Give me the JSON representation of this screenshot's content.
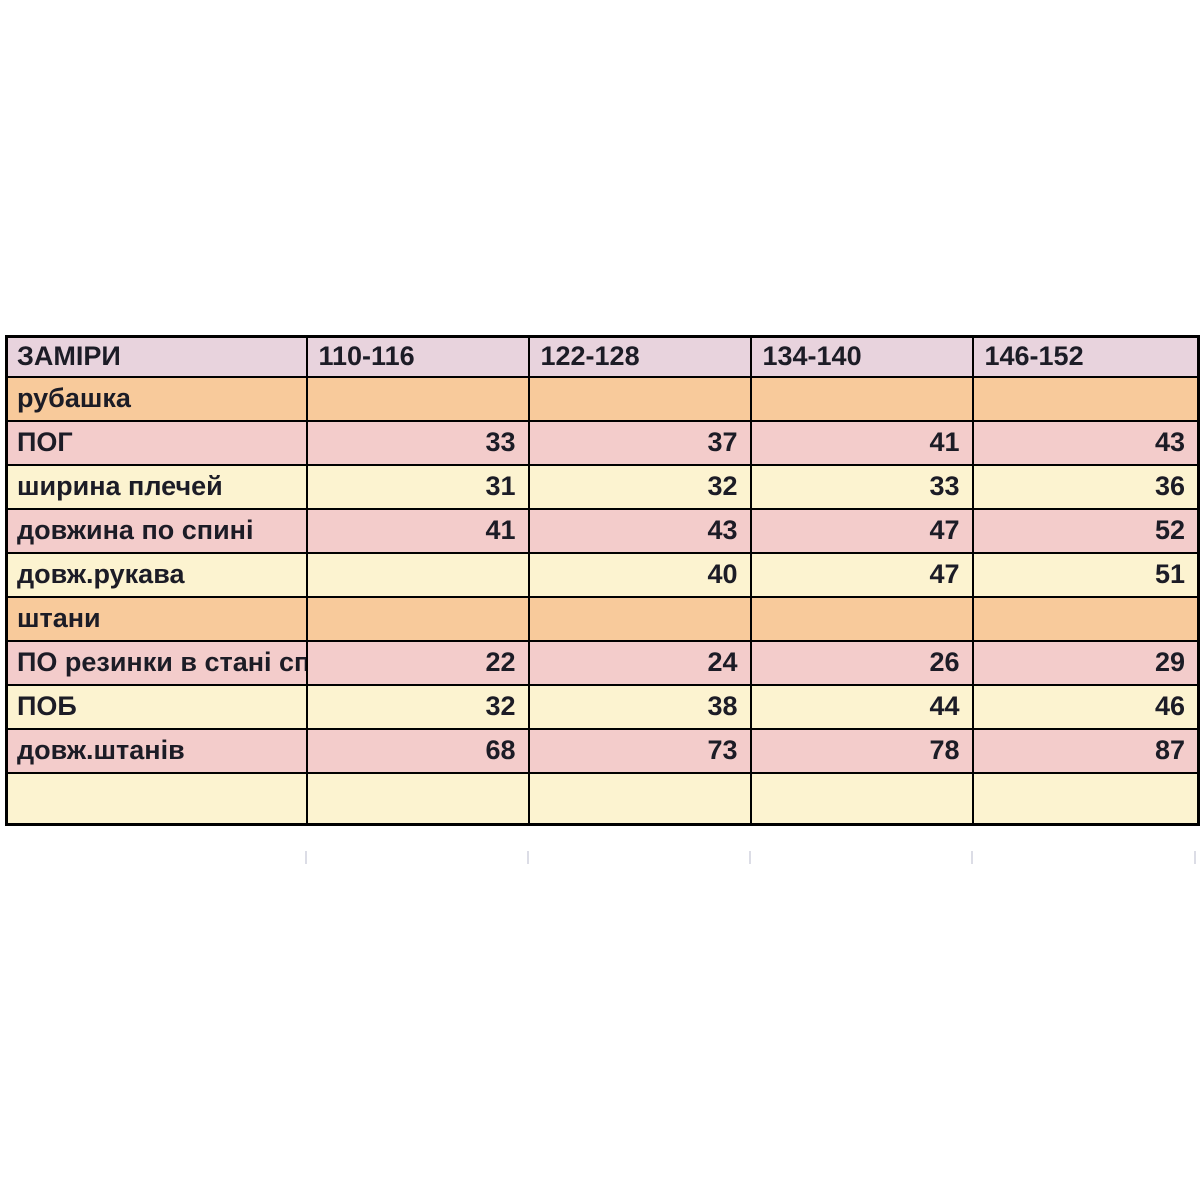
{
  "chart_data": {
    "type": "table",
    "title": "ЗАМІРИ",
    "columns": [
      "ЗАМІРИ",
      "110-116",
      "122-128",
      "134-140",
      "146-152"
    ],
    "rows": [
      [
        "рубашка",
        "",
        "",
        "",
        ""
      ],
      [
        "ПОГ",
        "33",
        "37",
        "41",
        "43"
      ],
      [
        "ширина плечей",
        "31",
        "32",
        "33",
        "36"
      ],
      [
        "довжина по спині",
        "41",
        "43",
        "47",
        "52"
      ],
      [
        "довж.рукава",
        "",
        "40",
        "47",
        "51"
      ],
      [
        "штани",
        "",
        "",
        "",
        ""
      ],
      [
        "ПО резинки в стані сп",
        "22",
        "24",
        "26",
        "29"
      ],
      [
        "ПОБ",
        "32",
        "38",
        "44",
        "46"
      ],
      [
        "довж.штанів",
        "68",
        "73",
        "78",
        "87"
      ],
      [
        "",
        "",
        "",
        "",
        ""
      ]
    ]
  },
  "table": {
    "header": [
      "ЗАМІРИ",
      "110-116",
      "122-128",
      "134-140",
      "146-152"
    ],
    "rows": [
      {
        "label": "рубашка",
        "type": "section",
        "values": [
          "",
          "",
          "",
          ""
        ]
      },
      {
        "label": "ПОГ",
        "type": "pink",
        "values": [
          "33",
          "37",
          "41",
          "43"
        ]
      },
      {
        "label": "ширина плечей",
        "type": "yellow",
        "values": [
          "31",
          "32",
          "33",
          "36"
        ]
      },
      {
        "label": "довжина по спині",
        "type": "pink",
        "values": [
          "41",
          "43",
          "47",
          "52"
        ]
      },
      {
        "label": "довж.рукава",
        "type": "yellow",
        "values": [
          "",
          "40",
          "47",
          "51"
        ]
      },
      {
        "label": "штани",
        "type": "section",
        "values": [
          "",
          "",
          "",
          ""
        ]
      },
      {
        "label": "ПО резинки в стані сп",
        "type": "pink",
        "values": [
          "22",
          "24",
          "26",
          "29"
        ]
      },
      {
        "label": "ПОБ",
        "type": "yellow",
        "values": [
          "32",
          "38",
          "44",
          "46"
        ]
      },
      {
        "label": "довж.штанів",
        "type": "pink",
        "values": [
          "68",
          "73",
          "78",
          "87"
        ]
      },
      {
        "label": "",
        "type": "yellow",
        "values": [
          "",
          "",
          "",
          ""
        ]
      }
    ]
  },
  "colors": {
    "header_bg": "#e8d3dd",
    "section_bg": "#f8ca9b",
    "pink_bg": "#f3cccb",
    "yellow_bg": "#fcf3d0",
    "border": "#000000",
    "text": "#1c1c26",
    "grid_tick": "#dcdde6"
  }
}
